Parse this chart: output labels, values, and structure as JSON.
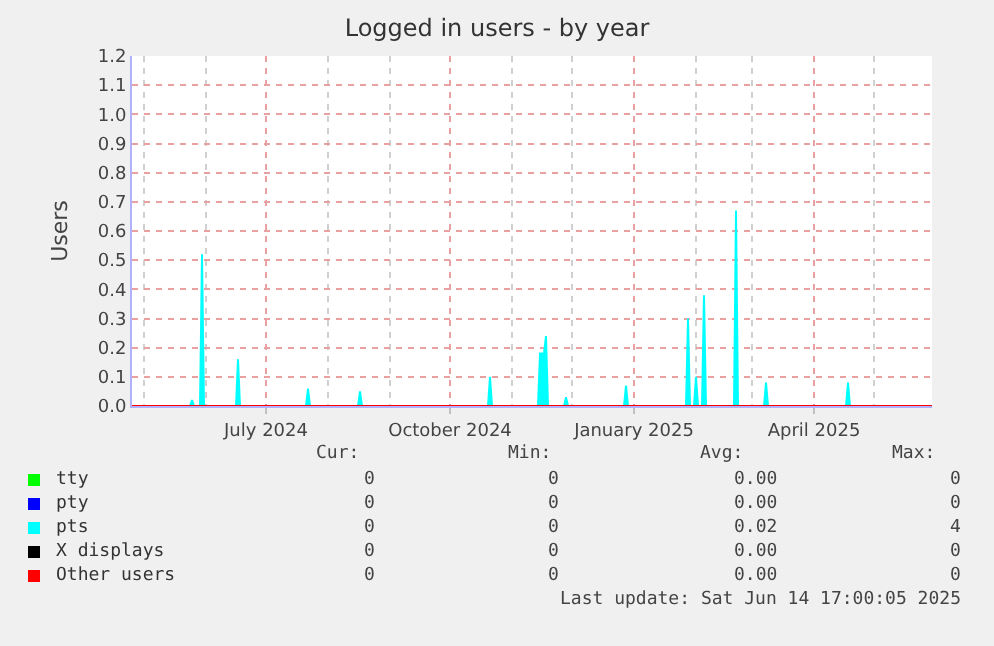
{
  "chart_data": {
    "type": "area",
    "title": "Logged in users - by year",
    "ylabel": "Users",
    "x": [
      "2024-04-25",
      "2024-05-24",
      "2024-05-25",
      "2024-05-26",
      "2024-05-29",
      "2024-05-30",
      "2024-05-31",
      "2024-06-16",
      "2024-06-17",
      "2024-06-18",
      "2024-07-21",
      "2024-07-22",
      "2024-07-23",
      "2024-08-16",
      "2024-08-17",
      "2024-08-18",
      "2024-10-20",
      "2024-10-21",
      "2024-10-22",
      "2024-11-14",
      "2024-11-15",
      "2024-11-17",
      "2024-11-18",
      "2024-11-19",
      "2024-11-27",
      "2024-11-28",
      "2024-11-29",
      "2024-12-27",
      "2024-12-28",
      "2024-12-29",
      "2025-01-27",
      "2025-01-28",
      "2025-01-29",
      "2025-01-31",
      "2025-02-01",
      "2025-02-02",
      "2025-02-04",
      "2025-02-05",
      "2025-02-06",
      "2025-02-20",
      "2025-02-21",
      "2025-02-22",
      "2025-03-07",
      "2025-03-08",
      "2025-03-09",
      "2025-04-17",
      "2025-04-18",
      "2025-04-19",
      "2025-05-30"
    ],
    "series": [
      {
        "name": "tty",
        "type": "line",
        "color": "#00ff00",
        "values": [
          null,
          null,
          null,
          null,
          null,
          null,
          null,
          null,
          null,
          null,
          null,
          null,
          null,
          null,
          null,
          null,
          null,
          null,
          null,
          null,
          null,
          null,
          null,
          null,
          null,
          null,
          null,
          null,
          null,
          null,
          null,
          null,
          null,
          null,
          null,
          null,
          null,
          null,
          null,
          null,
          null,
          null,
          null,
          null,
          null,
          null,
          null,
          null,
          null
        ]
      },
      {
        "name": "pty",
        "type": "line",
        "color": "#0000ff",
        "values": [
          null,
          null,
          null,
          null,
          null,
          null,
          null,
          null,
          null,
          null,
          null,
          null,
          null,
          null,
          null,
          null,
          null,
          null,
          null,
          null,
          null,
          null,
          null,
          null,
          null,
          null,
          null,
          null,
          null,
          null,
          null,
          null,
          null,
          null,
          null,
          null,
          null,
          null,
          null,
          null,
          null,
          null,
          null,
          null,
          null,
          null,
          null,
          null,
          null
        ]
      },
      {
        "name": "pts",
        "color": "#00ffff",
        "values": [
          0,
          0,
          0.02,
          0,
          0,
          0.52,
          0,
          0,
          0.16,
          0,
          0,
          0.06,
          0,
          0,
          0.05,
          0,
          0,
          0.1,
          0,
          0,
          0.18,
          0.18,
          0.24,
          0,
          0,
          0.03,
          0,
          0,
          0.07,
          0,
          0,
          0.3,
          0,
          0,
          0.1,
          0,
          0,
          0.38,
          0,
          0,
          0.67,
          0,
          0,
          0.08,
          0,
          0,
          0.08,
          0,
          0
        ]
      },
      {
        "name": "X displays",
        "type": "line",
        "color": "#000000",
        "values": [
          null,
          null,
          null,
          null,
          null,
          null,
          null,
          null,
          null,
          null,
          null,
          null,
          null,
          null,
          null,
          null,
          null,
          null,
          null,
          null,
          null,
          null,
          null,
          null,
          null,
          null,
          null,
          null,
          null,
          null,
          null,
          null,
          null,
          null,
          null,
          null,
          null,
          null,
          null,
          null,
          null,
          null,
          null,
          null,
          null,
          null,
          null,
          null,
          null
        ]
      },
      {
        "name": "Other users",
        "type": "line",
        "color": "#ff0000",
        "x": [
          "2024-04-25",
          "2025-05-30"
        ],
        "values": [
          0,
          0
        ]
      }
    ],
    "xlim": [
      "2024-04-25",
      "2025-05-30"
    ],
    "xticks": [
      {
        "value": "2024-07-01",
        "label": "July 2024"
      },
      {
        "value": "2024-10-01",
        "label": "October 2024"
      },
      {
        "value": "2025-01-01",
        "label": "January 2025"
      },
      {
        "value": "2025-04-01",
        "label": "April 2025"
      }
    ],
    "ylim": [
      0,
      1.2
    ],
    "yticks": [
      {
        "value": 0,
        "label": "0.0"
      },
      {
        "value": 0.1,
        "label": "0.1"
      },
      {
        "value": 0.2,
        "label": "0.2"
      },
      {
        "value": 0.3,
        "label": "0.3"
      },
      {
        "value": 0.4,
        "label": "0.4"
      },
      {
        "value": 0.5,
        "label": "0.5"
      },
      {
        "value": 0.6,
        "label": "0.6"
      },
      {
        "value": 0.7,
        "label": "0.7"
      },
      {
        "value": 0.8,
        "label": "0.8"
      },
      {
        "value": 0.9,
        "label": "0.9"
      },
      {
        "value": 1,
        "label": "1.0"
      },
      {
        "value": 1.1,
        "label": "1.1"
      },
      {
        "value": 1.2,
        "label": "1.2"
      }
    ],
    "grid": true,
    "legend": "bottom left",
    "annotations": [
      "Cur:",
      "Min:",
      "Avg:",
      "Max:",
      "0",
      "0",
      "0.00",
      "0",
      "0",
      "0",
      "0.00",
      "0",
      "0",
      "0",
      "0.02",
      "4",
      "0",
      "0",
      "0.00",
      "0",
      "0",
      "0",
      "0.00",
      "0",
      "Last update: Sat Jun 14 17:00:05 2025"
    ]
  }
}
